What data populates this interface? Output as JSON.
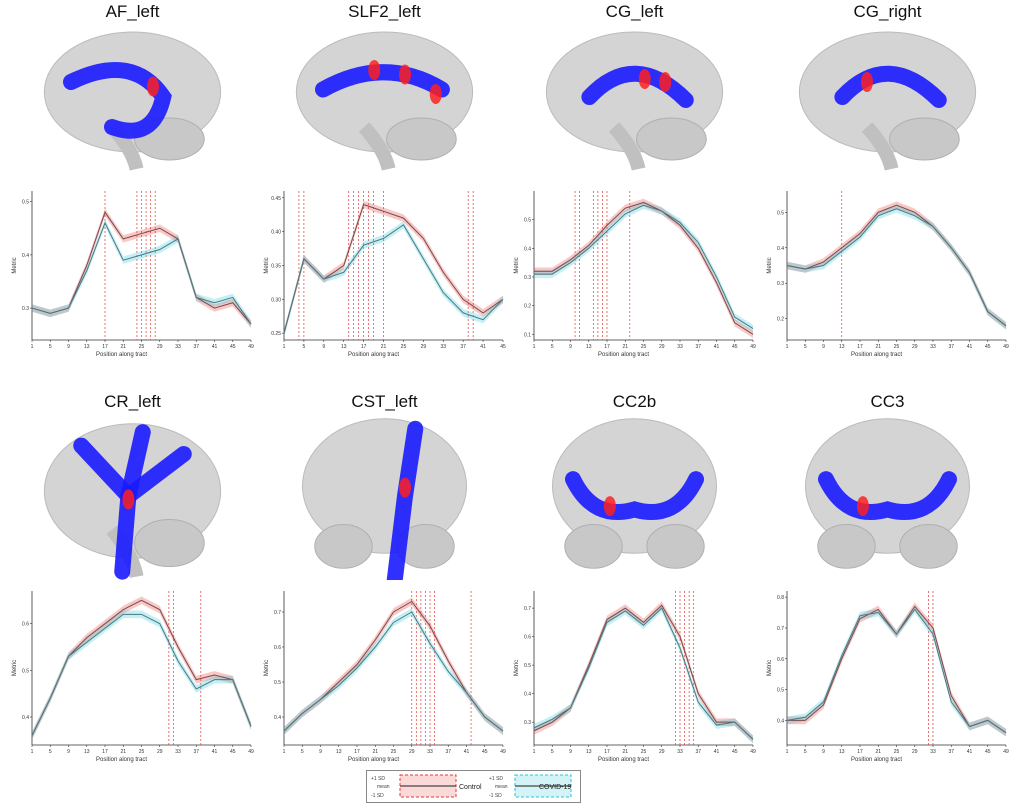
{
  "panels": [
    {
      "title": "AF_left",
      "view": "sagittal",
      "ylabel": "Metric",
      "xlabel": "Position along tract",
      "ticks": [
        "1",
        "5",
        "9",
        "13",
        "17",
        "21",
        "25",
        "29",
        "33",
        "37",
        "41",
        "45",
        "49"
      ],
      "yticks": [
        "0.3",
        "0.4",
        "0.5"
      ],
      "ylim": [
        0.24,
        0.52
      ]
    },
    {
      "title": "SLF2_left",
      "view": "sagittal",
      "ylabel": "Metric",
      "xlabel": "Position along tract",
      "ticks": [
        "1",
        "5",
        "9",
        "13",
        "17",
        "21",
        "25",
        "29",
        "33",
        "37",
        "41",
        "45"
      ],
      "yticks": [
        "0.25",
        "0.30",
        "0.35",
        "0.40",
        "0.45"
      ],
      "ylim": [
        0.24,
        0.46
      ]
    },
    {
      "title": "CG_left",
      "view": "sagittal",
      "ylabel": "Metric",
      "xlabel": "Position along tract",
      "ticks": [
        "1",
        "5",
        "9",
        "13",
        "17",
        "21",
        "25",
        "29",
        "33",
        "37",
        "41",
        "45",
        "49"
      ],
      "yticks": [
        "0.1",
        "0.2",
        "0.3",
        "0.4",
        "0.5"
      ],
      "ylim": [
        0.08,
        0.6
      ]
    },
    {
      "title": "CG_right",
      "view": "sagittal",
      "ylabel": "Metric",
      "xlabel": "Position along tract",
      "ticks": [
        "1",
        "5",
        "9",
        "13",
        "17",
        "21",
        "25",
        "29",
        "33",
        "37",
        "41",
        "45",
        "49"
      ],
      "yticks": [
        "0.2",
        "0.3",
        "0.4",
        "0.5"
      ],
      "ylim": [
        0.14,
        0.56
      ]
    },
    {
      "title": "CR_left",
      "view": "sagittal",
      "ylabel": "Metric",
      "xlabel": "Position along tract",
      "ticks": [
        "1",
        "5",
        "9",
        "13",
        "17",
        "21",
        "25",
        "29",
        "33",
        "37",
        "41",
        "45",
        "49"
      ],
      "yticks": [
        "0.4",
        "0.5",
        "0.6"
      ],
      "ylim": [
        0.34,
        0.67
      ]
    },
    {
      "title": "CST_left",
      "view": "coronal",
      "ylabel": "Metric",
      "xlabel": "Position along tract",
      "ticks": [
        "1",
        "5",
        "9",
        "13",
        "17",
        "21",
        "25",
        "29",
        "33",
        "37",
        "41",
        "45",
        "49"
      ],
      "yticks": [
        "0.4",
        "0.5",
        "0.6",
        "0.7"
      ],
      "ylim": [
        0.32,
        0.76
      ]
    },
    {
      "title": "CC2b",
      "view": "coronal",
      "ylabel": "Metric",
      "xlabel": "Position along tract",
      "ticks": [
        "1",
        "5",
        "9",
        "13",
        "17",
        "21",
        "25",
        "29",
        "33",
        "37",
        "41",
        "45",
        "49"
      ],
      "yticks": [
        "0.3",
        "0.4",
        "0.5",
        "0.6",
        "0.7"
      ],
      "ylim": [
        0.22,
        0.76
      ]
    },
    {
      "title": "CC3",
      "view": "coronal",
      "ylabel": "Metric",
      "xlabel": "Position along tract",
      "ticks": [
        "1",
        "5",
        "9",
        "13",
        "17",
        "21",
        "25",
        "29",
        "33",
        "37",
        "41",
        "45",
        "49"
      ],
      "yticks": [
        "0.4",
        "0.5",
        "0.6",
        "0.7",
        "0.8"
      ],
      "ylim": [
        0.32,
        0.82
      ]
    }
  ],
  "legend": {
    "control": {
      "label": "Control",
      "upper": "+1 SD",
      "mean": "mean",
      "lower": "-1 SD"
    },
    "covid": {
      "label": "COVID-19",
      "upper": "+1 SD",
      "mean": "mean",
      "lower": "-1 SD"
    }
  },
  "colors": {
    "control": "#e53935",
    "covid": "#26c6da",
    "tract": "#1a1aff",
    "segment": "#ff2020",
    "mean": "#555555"
  },
  "chart_data": [
    {
      "type": "line",
      "title": "AF_left",
      "x_positions": [
        1,
        5,
        9,
        13,
        17,
        21,
        25,
        29,
        33,
        37,
        41,
        45,
        49
      ],
      "series": [
        {
          "name": "Control",
          "values": [
            0.3,
            0.29,
            0.3,
            0.38,
            0.48,
            0.43,
            0.44,
            0.45,
            0.43,
            0.32,
            0.3,
            0.31,
            0.27
          ]
        },
        {
          "name": "COVID-19",
          "values": [
            0.3,
            0.29,
            0.3,
            0.37,
            0.46,
            0.39,
            0.4,
            0.41,
            0.43,
            0.32,
            0.31,
            0.32,
            0.27
          ]
        }
      ],
      "significant_positions": [
        17,
        24,
        25,
        26,
        27,
        28
      ]
    },
    {
      "type": "line",
      "title": "SLF2_left",
      "x_positions": [
        1,
        5,
        9,
        13,
        17,
        21,
        25,
        29,
        33,
        37,
        41,
        45
      ],
      "series": [
        {
          "name": "Control",
          "values": [
            0.25,
            0.36,
            0.33,
            0.35,
            0.44,
            0.43,
            0.42,
            0.39,
            0.34,
            0.3,
            0.28,
            0.3
          ]
        },
        {
          "name": "COVID-19",
          "values": [
            0.25,
            0.36,
            0.33,
            0.34,
            0.38,
            0.39,
            0.41,
            0.36,
            0.31,
            0.28,
            0.27,
            0.3
          ]
        }
      ],
      "significant_positions": [
        4,
        5,
        14,
        15,
        16,
        17,
        18,
        19,
        21,
        38,
        39
      ]
    },
    {
      "type": "line",
      "title": "CG_left",
      "x_positions": [
        1,
        5,
        9,
        13,
        17,
        21,
        25,
        29,
        33,
        37,
        41,
        45,
        49
      ],
      "series": [
        {
          "name": "Control",
          "values": [
            0.32,
            0.32,
            0.36,
            0.41,
            0.48,
            0.54,
            0.56,
            0.53,
            0.48,
            0.4,
            0.28,
            0.14,
            0.1
          ]
        },
        {
          "name": "COVID-19",
          "values": [
            0.31,
            0.31,
            0.35,
            0.4,
            0.46,
            0.52,
            0.55,
            0.53,
            0.49,
            0.42,
            0.3,
            0.16,
            0.12
          ]
        }
      ],
      "significant_positions": [
        10,
        11,
        14,
        15,
        16,
        17,
        22
      ]
    },
    {
      "type": "line",
      "title": "CG_right",
      "x_positions": [
        1,
        5,
        9,
        13,
        17,
        21,
        25,
        29,
        33,
        37,
        41,
        45,
        49
      ],
      "series": [
        {
          "name": "Control",
          "values": [
            0.35,
            0.34,
            0.36,
            0.4,
            0.44,
            0.5,
            0.52,
            0.5,
            0.46,
            0.4,
            0.33,
            0.22,
            0.18
          ]
        },
        {
          "name": "COVID-19",
          "values": [
            0.35,
            0.34,
            0.35,
            0.39,
            0.43,
            0.49,
            0.51,
            0.49,
            0.46,
            0.4,
            0.33,
            0.22,
            0.18
          ]
        }
      ],
      "significant_positions": [
        13
      ]
    },
    {
      "type": "line",
      "title": "CR_left",
      "x_positions": [
        1,
        5,
        9,
        13,
        17,
        21,
        25,
        29,
        33,
        37,
        41,
        45,
        49
      ],
      "series": [
        {
          "name": "Control",
          "values": [
            0.36,
            0.44,
            0.53,
            0.57,
            0.6,
            0.63,
            0.65,
            0.63,
            0.55,
            0.48,
            0.49,
            0.48,
            0.38
          ]
        },
        {
          "name": "COVID-19",
          "values": [
            0.36,
            0.44,
            0.53,
            0.56,
            0.59,
            0.62,
            0.62,
            0.6,
            0.52,
            0.46,
            0.48,
            0.48,
            0.38
          ]
        }
      ],
      "significant_positions": [
        31,
        32,
        38
      ]
    },
    {
      "type": "line",
      "title": "CST_left",
      "x_positions": [
        1,
        5,
        9,
        13,
        17,
        21,
        25,
        29,
        33,
        37,
        41,
        45,
        49
      ],
      "series": [
        {
          "name": "Control",
          "values": [
            0.36,
            0.41,
            0.45,
            0.5,
            0.55,
            0.62,
            0.7,
            0.73,
            0.66,
            0.56,
            0.47,
            0.4,
            0.36
          ]
        },
        {
          "name": "COVID-19",
          "values": [
            0.36,
            0.41,
            0.45,
            0.49,
            0.54,
            0.6,
            0.67,
            0.7,
            0.61,
            0.53,
            0.47,
            0.4,
            0.36
          ]
        }
      ],
      "significant_positions": [
        29,
        30,
        31,
        32,
        33,
        34,
        42
      ]
    },
    {
      "type": "line",
      "title": "CC2b",
      "x_positions": [
        1,
        5,
        9,
        13,
        17,
        21,
        25,
        29,
        33,
        37,
        41,
        45,
        49
      ],
      "series": [
        {
          "name": "Control",
          "values": [
            0.27,
            0.3,
            0.35,
            0.5,
            0.66,
            0.7,
            0.65,
            0.71,
            0.6,
            0.4,
            0.3,
            0.3,
            0.24
          ]
        },
        {
          "name": "COVID-19",
          "values": [
            0.28,
            0.31,
            0.35,
            0.49,
            0.65,
            0.69,
            0.64,
            0.7,
            0.56,
            0.37,
            0.29,
            0.3,
            0.24
          ]
        }
      ],
      "significant_positions": [
        32,
        33,
        34,
        35,
        36
      ]
    },
    {
      "type": "line",
      "title": "CC3",
      "x_positions": [
        1,
        5,
        9,
        13,
        17,
        21,
        25,
        29,
        33,
        37,
        41,
        45,
        49
      ],
      "series": [
        {
          "name": "Control",
          "values": [
            0.4,
            0.4,
            0.45,
            0.6,
            0.73,
            0.76,
            0.68,
            0.77,
            0.7,
            0.48,
            0.38,
            0.4,
            0.36
          ]
        },
        {
          "name": "COVID-19",
          "values": [
            0.4,
            0.41,
            0.46,
            0.61,
            0.74,
            0.75,
            0.68,
            0.76,
            0.68,
            0.46,
            0.38,
            0.4,
            0.36
          ]
        }
      ],
      "significant_positions": [
        32,
        33
      ]
    }
  ]
}
